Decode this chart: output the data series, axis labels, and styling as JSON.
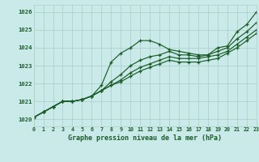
{
  "title": "Graphe pression niveau de la mer (hPa)",
  "bg_color": "#caeaea",
  "grid_color": "#b0d0cc",
  "line_color": "#1a5c28",
  "xlim": [
    0,
    23
  ],
  "ylim": [
    1019.6,
    1026.4
  ],
  "yticks": [
    1020,
    1021,
    1022,
    1023,
    1024,
    1025,
    1026
  ],
  "xticks": [
    0,
    1,
    2,
    3,
    4,
    5,
    6,
    7,
    8,
    9,
    10,
    11,
    12,
    13,
    14,
    15,
    16,
    17,
    18,
    19,
    20,
    21,
    22,
    23
  ],
  "series": [
    [
      1020.1,
      1020.4,
      1020.7,
      1021.0,
      1021.0,
      1021.1,
      1021.3,
      1021.9,
      1023.2,
      1023.7,
      1024.0,
      1024.4,
      1024.4,
      1024.2,
      1023.9,
      1023.8,
      1023.7,
      1023.6,
      1023.6,
      1024.0,
      1024.1,
      1024.9,
      1025.3,
      1026.0
    ],
    [
      1020.1,
      1020.4,
      1020.7,
      1021.0,
      1021.0,
      1021.1,
      1021.3,
      1021.6,
      1022.1,
      1022.5,
      1023.0,
      1023.3,
      1023.5,
      1023.6,
      1023.8,
      1023.6,
      1023.6,
      1023.5,
      1023.6,
      1023.8,
      1024.0,
      1024.5,
      1024.9,
      1025.4
    ],
    [
      1020.1,
      1020.4,
      1020.7,
      1021.0,
      1021.0,
      1021.1,
      1021.3,
      1021.6,
      1021.9,
      1022.2,
      1022.6,
      1022.9,
      1023.1,
      1023.3,
      1023.5,
      1023.4,
      1023.4,
      1023.4,
      1023.5,
      1023.6,
      1023.8,
      1024.2,
      1024.6,
      1025.0
    ],
    [
      1020.1,
      1020.4,
      1020.7,
      1021.0,
      1021.0,
      1021.1,
      1021.3,
      1021.6,
      1021.9,
      1022.1,
      1022.4,
      1022.7,
      1022.9,
      1023.1,
      1023.3,
      1023.2,
      1023.2,
      1023.2,
      1023.3,
      1023.4,
      1023.7,
      1024.0,
      1024.4,
      1024.8
    ]
  ]
}
